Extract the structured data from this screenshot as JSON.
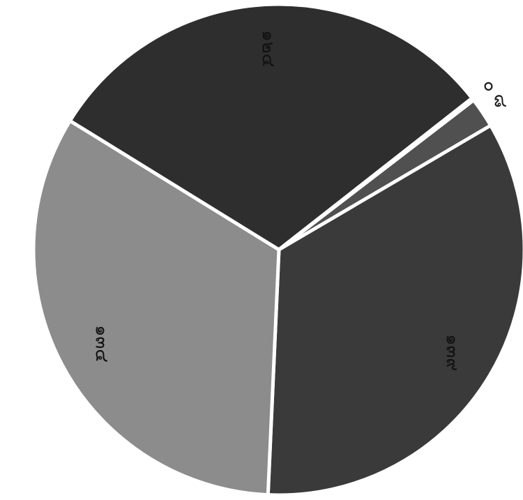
{
  "chart_data": {
    "type": "pie",
    "slices": [
      {
        "label": "๑๓๙",
        "value": 139,
        "color": "#3a3a3a"
      },
      {
        "label": "๑๓๔",
        "value": 134,
        "color": "#8c8c8c"
      },
      {
        "label": "๑๒๔",
        "value": 124,
        "color": "#2e2e2e"
      },
      {
        "label": "๐",
        "value": 0,
        "color": "#444444"
      },
      {
        "label": "๘",
        "value": 8,
        "color": "#505050"
      }
    ]
  }
}
